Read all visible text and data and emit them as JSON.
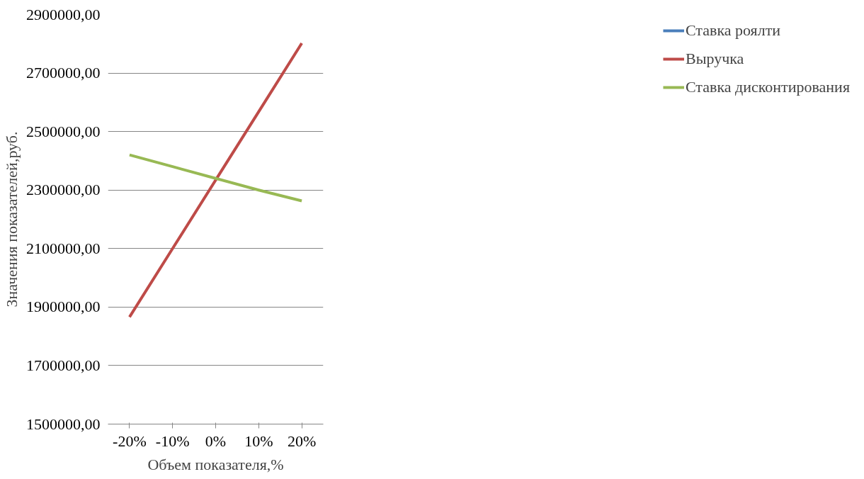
{
  "chart_data": {
    "type": "line",
    "xlabel": "Объем показателя,%",
    "ylabel": "Значения показателей,руб.",
    "categories": [
      "-20%",
      "-10%",
      "0%",
      "10%",
      "20%"
    ],
    "series": [
      {
        "name": "Ставка роялти",
        "color": "#4a7ebb",
        "values": [
          null,
          null,
          null,
          null,
          null
        ]
      },
      {
        "name": "Выручка",
        "color": "#be4b48",
        "values": [
          1866000,
          2100000,
          2334000,
          2568000,
          2802000
        ]
      },
      {
        "name": "Ставка дисконтирования",
        "color": "#98b954",
        "values": [
          2420000,
          2380000,
          2340000,
          2300000,
          2263000
        ]
      }
    ],
    "ylim": [
      1500000,
      2900000
    ],
    "yticks": [
      {
        "value": 1500000,
        "label": "1500000,00"
      },
      {
        "value": 1700000,
        "label": "1700000,00"
      },
      {
        "value": 1900000,
        "label": "1900000,00"
      },
      {
        "value": 2100000,
        "label": "2100000,00"
      },
      {
        "value": 2300000,
        "label": "2300000,00"
      },
      {
        "value": 2500000,
        "label": "2500000,00"
      },
      {
        "value": 2700000,
        "label": "2700000,00"
      },
      {
        "value": 2900000,
        "label": "2900000,00"
      }
    ],
    "grid": "y",
    "legend": "right",
    "marker": "none",
    "line_style": "solid"
  }
}
